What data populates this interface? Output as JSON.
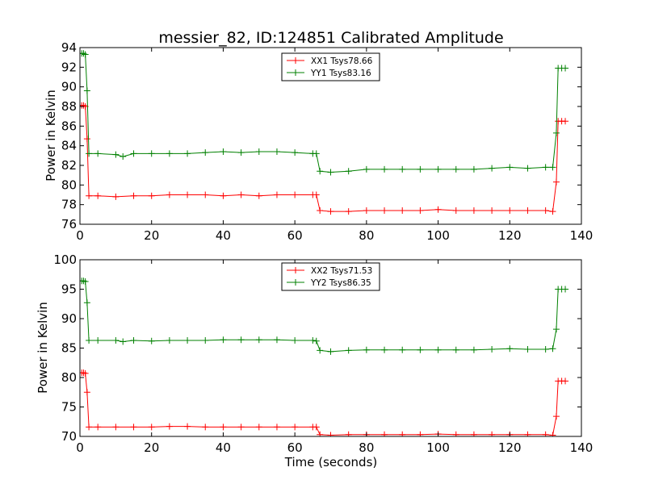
{
  "title": "messier_82, ID:124851 Calibrated Amplitude",
  "chart_data": [
    {
      "type": "line",
      "title": "messier_82, ID:124851 Calibrated Amplitude",
      "xlabel": "",
      "ylabel": "Power in Kelvin",
      "xlim": [
        0,
        140
      ],
      "ylim": [
        76,
        94
      ],
      "xticks": [
        0,
        20,
        40,
        60,
        80,
        100,
        120,
        140
      ],
      "yticks": [
        76,
        78,
        80,
        82,
        84,
        86,
        88,
        90,
        92,
        94
      ],
      "grid": false,
      "legend_position": "top-center",
      "series": [
        {
          "name": "XX1 Tsys78.66",
          "color": "#ff0000",
          "marker": "+",
          "points": [
            [
              0.5,
              88.1
            ],
            [
              1.0,
              88.1
            ],
            [
              1.5,
              88.0
            ],
            [
              2.0,
              84.7
            ],
            [
              2.5,
              78.9
            ],
            [
              5,
              78.9
            ],
            [
              10,
              78.8
            ],
            [
              15,
              78.9
            ],
            [
              20,
              78.9
            ],
            [
              25,
              79.0
            ],
            [
              30,
              79.0
            ],
            [
              35,
              79.0
            ],
            [
              40,
              78.9
            ],
            [
              45,
              79.0
            ],
            [
              50,
              78.9
            ],
            [
              55,
              79.0
            ],
            [
              60,
              79.0
            ],
            [
              65,
              79.0
            ],
            [
              66,
              79.0
            ],
            [
              67,
              77.4
            ],
            [
              70,
              77.3
            ],
            [
              75,
              77.3
            ],
            [
              80,
              77.4
            ],
            [
              85,
              77.4
            ],
            [
              90,
              77.4
            ],
            [
              95,
              77.4
            ],
            [
              100,
              77.5
            ],
            [
              105,
              77.4
            ],
            [
              110,
              77.4
            ],
            [
              115,
              77.4
            ],
            [
              120,
              77.4
            ],
            [
              125,
              77.4
            ],
            [
              130,
              77.4
            ],
            [
              132,
              77.3
            ],
            [
              133,
              80.3
            ],
            [
              133.5,
              86.5
            ],
            [
              134.5,
              86.5
            ],
            [
              135.5,
              86.5
            ]
          ]
        },
        {
          "name": "YY1 Tsys83.16",
          "color": "#008000",
          "marker": "+",
          "points": [
            [
              0.5,
              93.4
            ],
            [
              1.0,
              93.4
            ],
            [
              1.5,
              93.3
            ],
            [
              2.0,
              89.6
            ],
            [
              2.5,
              83.2
            ],
            [
              5,
              83.2
            ],
            [
              10,
              83.1
            ],
            [
              12,
              82.9
            ],
            [
              15,
              83.2
            ],
            [
              20,
              83.2
            ],
            [
              25,
              83.2
            ],
            [
              30,
              83.2
            ],
            [
              35,
              83.3
            ],
            [
              40,
              83.4
            ],
            [
              45,
              83.3
            ],
            [
              50,
              83.4
            ],
            [
              55,
              83.4
            ],
            [
              60,
              83.3
            ],
            [
              65,
              83.2
            ],
            [
              66,
              83.2
            ],
            [
              67,
              81.4
            ],
            [
              70,
              81.3
            ],
            [
              75,
              81.4
            ],
            [
              80,
              81.6
            ],
            [
              85,
              81.6
            ],
            [
              90,
              81.6
            ],
            [
              95,
              81.6
            ],
            [
              100,
              81.6
            ],
            [
              105,
              81.6
            ],
            [
              110,
              81.6
            ],
            [
              115,
              81.7
            ],
            [
              120,
              81.8
            ],
            [
              125,
              81.7
            ],
            [
              130,
              81.8
            ],
            [
              132,
              81.8
            ],
            [
              133,
              85.3
            ],
            [
              133.5,
              91.9
            ],
            [
              134.5,
              91.9
            ],
            [
              135.5,
              91.9
            ]
          ]
        }
      ]
    },
    {
      "type": "line",
      "title": "",
      "xlabel": "Time (seconds)",
      "ylabel": "Power in Kelvin",
      "xlim": [
        0,
        140
      ],
      "ylim": [
        70,
        100
      ],
      "xticks": [
        0,
        20,
        40,
        60,
        80,
        100,
        120,
        140
      ],
      "yticks": [
        70,
        75,
        80,
        85,
        90,
        95,
        100
      ],
      "grid": false,
      "legend_position": "top-center",
      "series": [
        {
          "name": "XX2 Tsys71.53",
          "color": "#ff0000",
          "marker": "+",
          "points": [
            [
              0.5,
              80.8
            ],
            [
              1.0,
              80.8
            ],
            [
              1.5,
              80.7
            ],
            [
              2.0,
              77.5
            ],
            [
              2.5,
              71.6
            ],
            [
              5,
              71.6
            ],
            [
              10,
              71.6
            ],
            [
              15,
              71.6
            ],
            [
              20,
              71.6
            ],
            [
              25,
              71.7
            ],
            [
              30,
              71.7
            ],
            [
              35,
              71.6
            ],
            [
              40,
              71.6
            ],
            [
              45,
              71.6
            ],
            [
              50,
              71.6
            ],
            [
              55,
              71.6
            ],
            [
              60,
              71.6
            ],
            [
              65,
              71.6
            ],
            [
              66,
              71.6
            ],
            [
              67,
              70.3
            ],
            [
              70,
              70.2
            ],
            [
              75,
              70.3
            ],
            [
              80,
              70.3
            ],
            [
              85,
              70.3
            ],
            [
              90,
              70.3
            ],
            [
              95,
              70.3
            ],
            [
              100,
              70.4
            ],
            [
              105,
              70.3
            ],
            [
              110,
              70.3
            ],
            [
              115,
              70.3
            ],
            [
              120,
              70.3
            ],
            [
              125,
              70.3
            ],
            [
              130,
              70.3
            ],
            [
              132,
              70.2
            ],
            [
              133,
              73.4
            ],
            [
              133.5,
              79.4
            ],
            [
              134.5,
              79.4
            ],
            [
              135.5,
              79.4
            ]
          ]
        },
        {
          "name": "YY2 Tsys86.35",
          "color": "#008000",
          "marker": "+",
          "points": [
            [
              0.5,
              96.4
            ],
            [
              1.0,
              96.4
            ],
            [
              1.5,
              96.3
            ],
            [
              2.0,
              92.7
            ],
            [
              2.5,
              86.3
            ],
            [
              5,
              86.3
            ],
            [
              10,
              86.3
            ],
            [
              12,
              86.1
            ],
            [
              15,
              86.3
            ],
            [
              20,
              86.2
            ],
            [
              25,
              86.3
            ],
            [
              30,
              86.3
            ],
            [
              35,
              86.3
            ],
            [
              40,
              86.4
            ],
            [
              45,
              86.4
            ],
            [
              50,
              86.4
            ],
            [
              55,
              86.4
            ],
            [
              60,
              86.3
            ],
            [
              65,
              86.3
            ],
            [
              66,
              86.2
            ],
            [
              67,
              84.6
            ],
            [
              70,
              84.4
            ],
            [
              75,
              84.6
            ],
            [
              80,
              84.7
            ],
            [
              85,
              84.7
            ],
            [
              90,
              84.7
            ],
            [
              95,
              84.7
            ],
            [
              100,
              84.7
            ],
            [
              105,
              84.7
            ],
            [
              110,
              84.7
            ],
            [
              115,
              84.8
            ],
            [
              120,
              84.9
            ],
            [
              125,
              84.8
            ],
            [
              130,
              84.8
            ],
            [
              132,
              84.9
            ],
            [
              133,
              88.2
            ],
            [
              133.5,
              95.0
            ],
            [
              134.5,
              95.0
            ],
            [
              135.5,
              95.0
            ]
          ]
        }
      ]
    }
  ]
}
